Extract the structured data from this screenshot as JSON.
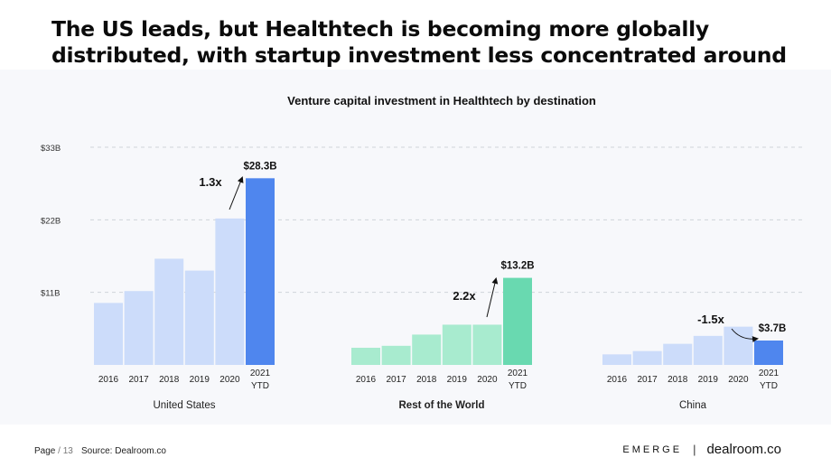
{
  "headline": "The US leads, but Healthtech is becoming more globally distributed, with startup investment less concentrated around the US and China.",
  "chart_data": {
    "type": "bar",
    "title": "Venture capital investment in Healthtech by destination",
    "yticks": [
      "$11B",
      "$22B",
      "$33B"
    ],
    "ytick_values": [
      11,
      22,
      33
    ],
    "ylim": [
      0,
      33
    ],
    "grid": true,
    "panels": [
      {
        "name": "United States",
        "categories": [
          "2016",
          "2017",
          "2018",
          "2019",
          "2020",
          "2021 YTD"
        ],
        "values": [
          9.4,
          11.2,
          16.1,
          14.3,
          22.2,
          28.3
        ],
        "colors": [
          "#ccdcfa",
          "#ccdcfa",
          "#ccdcfa",
          "#ccdcfa",
          "#ccdcfa",
          "#4f86ee"
        ],
        "highlight_label": "$28.3B",
        "growth_label": "1.3x"
      },
      {
        "name": "Rest of the World",
        "categories": [
          "2016",
          "2017",
          "2018",
          "2019",
          "2020",
          "2021 YTD"
        ],
        "values": [
          2.6,
          2.9,
          4.6,
          6.1,
          6.1,
          13.2
        ],
        "colors": [
          "#a8ebcf",
          "#a8ebcf",
          "#a8ebcf",
          "#a8ebcf",
          "#a8ebcf",
          "#69d9b0"
        ],
        "highlight_label": "$13.2B",
        "growth_label": "2.2x"
      },
      {
        "name": "China",
        "categories": [
          "2016",
          "2017",
          "2018",
          "2019",
          "2020",
          "2021 YTD"
        ],
        "values": [
          1.6,
          2.1,
          3.2,
          4.4,
          5.8,
          3.7
        ],
        "colors": [
          "#ccdcfa",
          "#ccdcfa",
          "#ccdcfa",
          "#ccdcfa",
          "#ccdcfa",
          "#4f86ee"
        ],
        "highlight_label": "$3.7B",
        "growth_label": "-1.5x"
      }
    ]
  },
  "footer": {
    "page_prefix": "Page",
    "page_number": "/ 13",
    "source": "Source: Dealroom.co",
    "brand_left": "EMERGE",
    "brand_sep": "|",
    "brand_right": "dealroom.co"
  }
}
